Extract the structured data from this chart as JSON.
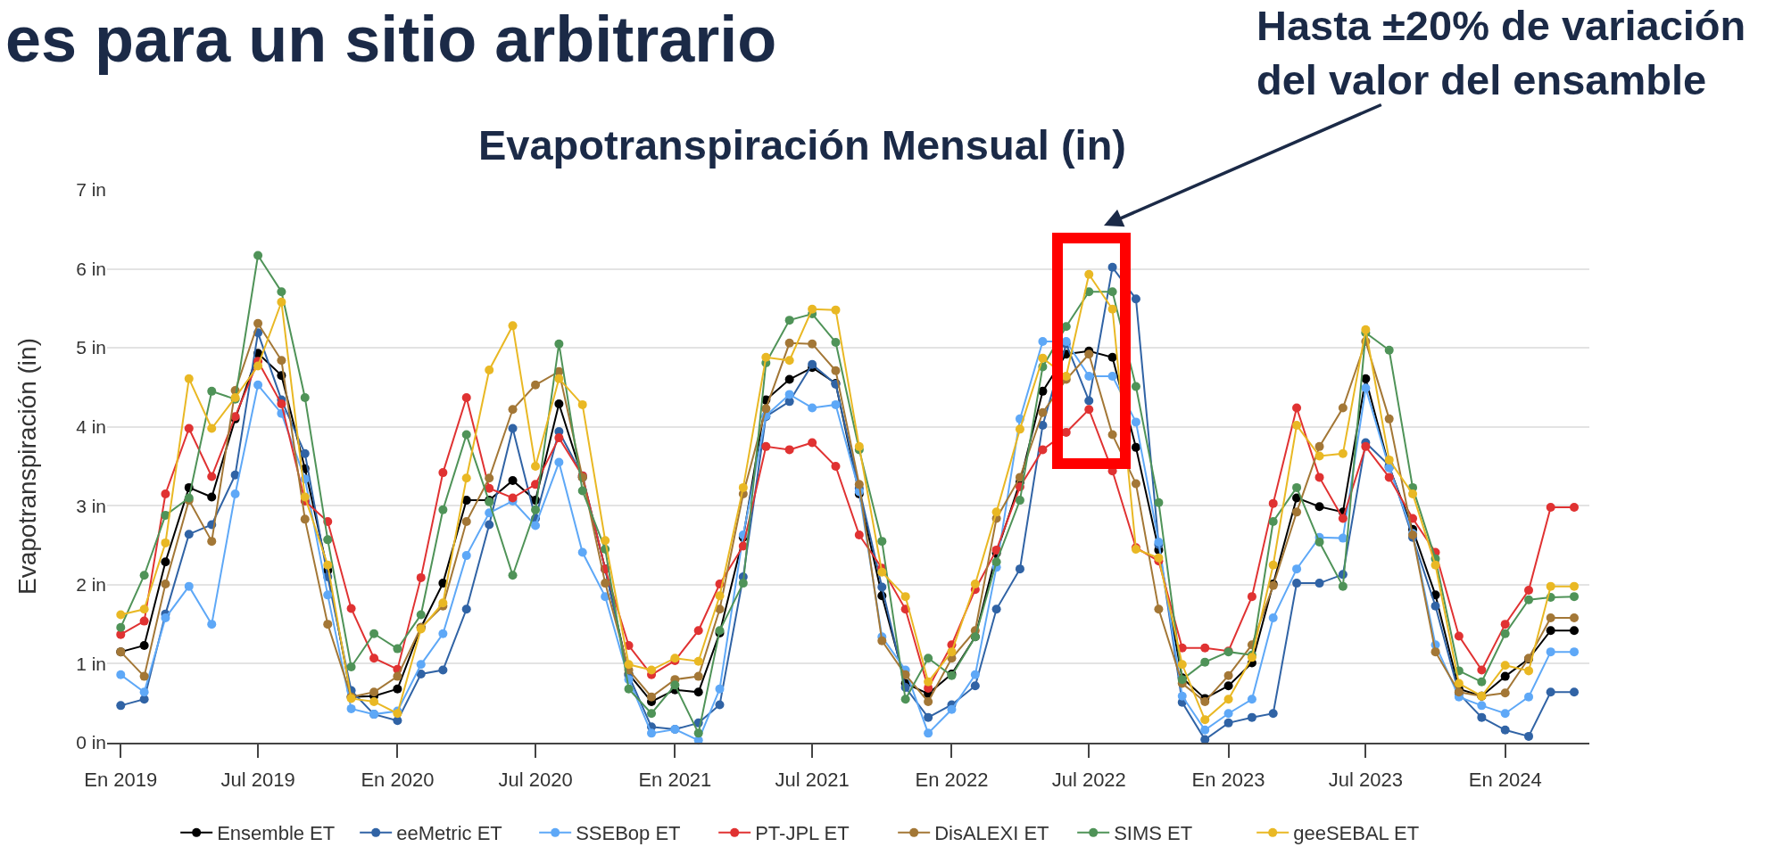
{
  "chart_data": {
    "type": "line",
    "title": "Evapotranspiración Mensual (in)",
    "ylabel": "Evapotranspiración (in)",
    "annotations": [
      "es para un sitio arbitrario",
      "Hasta ±20% de variación\ndel valor del ensamble"
    ],
    "x": [
      "2019-01",
      "2019-02",
      "2019-03",
      "2019-04",
      "2019-05",
      "2019-06",
      "2019-07",
      "2019-08",
      "2019-09",
      "2019-10",
      "2019-11",
      "2019-12",
      "2020-01",
      "2020-02",
      "2020-03",
      "2020-04",
      "2020-05",
      "2020-06",
      "2020-07",
      "2020-08",
      "2020-09",
      "2020-10",
      "2020-11",
      "2020-12",
      "2021-01",
      "2021-02",
      "2021-03",
      "2021-04",
      "2021-05",
      "2021-06",
      "2021-07",
      "2021-08",
      "2021-09",
      "2021-10",
      "2021-11",
      "2021-12",
      "2022-01",
      "2022-02",
      "2022-03",
      "2022-04",
      "2022-05",
      "2022-06",
      "2022-07",
      "2022-08",
      "2022-09",
      "2022-10",
      "2022-11",
      "2022-12",
      "2023-01",
      "2023-02",
      "2023-03",
      "2023-04",
      "2023-05",
      "2023-06",
      "2023-07",
      "2023-08",
      "2023-09",
      "2023-10",
      "2023-11",
      "2023-12",
      "2024-01",
      "2024-02",
      "2024-03",
      "2024-04"
    ],
    "series": [
      {
        "name": "Ensemble ET",
        "color": "#000000",
        "values": [
          1.15,
          1.23,
          2.29,
          3.23,
          3.11,
          4.1,
          4.93,
          4.65,
          3.47,
          2.18,
          0.58,
          0.59,
          0.68,
          1.46,
          2.02,
          3.07,
          3.07,
          3.32,
          3.07,
          4.29,
          3.36,
          2.2,
          0.87,
          0.52,
          0.67,
          0.64,
          1.39,
          2.6,
          4.34,
          4.6,
          4.75,
          4.55,
          3.15,
          1.86,
          0.75,
          0.62,
          0.87,
          1.34,
          2.4,
          3.3,
          4.45,
          4.92,
          4.96,
          4.88,
          3.74,
          2.44,
          0.82,
          0.56,
          0.72,
          1.01,
          2.01,
          3.1,
          2.99,
          2.92,
          4.61,
          3.49,
          2.7,
          1.87,
          0.68,
          0.59,
          0.84,
          1.06,
          1.42,
          1.42
        ]
      },
      {
        "name": "eeMetric ET",
        "color": "#3063a5",
        "values": [
          0.47,
          0.55,
          1.63,
          2.64,
          2.76,
          3.39,
          5.19,
          4.34,
          3.66,
          2.1,
          0.66,
          0.36,
          0.28,
          0.87,
          0.92,
          1.69,
          2.76,
          3.98,
          2.84,
          3.94,
          3.38,
          2.2,
          0.85,
          0.2,
          0.17,
          0.25,
          0.48,
          2.1,
          4.13,
          4.32,
          4.79,
          4.54,
          3.22,
          1.97,
          0.7,
          0.32,
          0.48,
          0.72,
          1.69,
          2.2,
          4.02,
          5.05,
          4.33,
          6.02,
          5.62,
          2.51,
          0.51,
          0.04,
          0.25,
          0.32,
          0.37,
          2.02,
          2.02,
          2.13,
          3.8,
          3.51,
          2.6,
          1.73,
          0.62,
          0.32,
          0.16,
          0.08,
          0.64,
          0.64
        ]
      },
      {
        "name": "SSEBop ET",
        "color": "#5ea8f7",
        "values": [
          0.86,
          0.64,
          1.58,
          1.98,
          1.5,
          3.15,
          4.53,
          4.17,
          3.34,
          1.87,
          0.43,
          0.36,
          0.4,
          0.99,
          1.38,
          2.37,
          2.91,
          3.06,
          2.75,
          3.55,
          2.41,
          1.85,
          0.8,
          0.12,
          0.17,
          0.03,
          0.68,
          2.63,
          4.14,
          4.41,
          4.24,
          4.28,
          3.18,
          1.34,
          0.92,
          0.12,
          0.42,
          0.86,
          2.22,
          4.1,
          5.08,
          5.08,
          4.64,
          4.64,
          4.06,
          2.54,
          0.59,
          0.16,
          0.37,
          0.55,
          1.58,
          2.2,
          2.6,
          2.59,
          4.49,
          3.48,
          2.65,
          1.24,
          0.58,
          0.47,
          0.37,
          0.58,
          1.15,
          1.15
        ]
      },
      {
        "name": "PT-JPL ET",
        "color": "#e03232",
        "values": [
          1.37,
          1.54,
          3.15,
          3.98,
          3.37,
          4.13,
          4.83,
          4.29,
          3.06,
          2.8,
          1.7,
          1.07,
          0.93,
          2.09,
          3.42,
          4.37,
          3.22,
          3.1,
          3.27,
          3.86,
          3.38,
          2.2,
          1.23,
          0.86,
          1.04,
          1.42,
          2.01,
          2.49,
          3.75,
          3.71,
          3.8,
          3.5,
          2.63,
          2.21,
          1.69,
          0.69,
          1.24,
          1.94,
          2.44,
          3.24,
          3.71,
          3.93,
          4.22,
          3.44,
          2.47,
          2.3,
          1.2,
          1.2,
          1.16,
          1.85,
          3.03,
          4.24,
          3.36,
          2.84,
          3.75,
          3.36,
          2.84,
          2.41,
          1.35,
          0.92,
          1.5,
          1.93,
          2.98,
          2.98
        ]
      },
      {
        "name": "DisALEXI ET",
        "color": "#a37736",
        "values": [
          1.15,
          0.84,
          2.01,
          3.07,
          2.55,
          4.46,
          5.31,
          4.84,
          2.83,
          1.5,
          0.58,
          0.64,
          0.84,
          1.46,
          1.73,
          2.8,
          3.35,
          4.22,
          4.53,
          4.7,
          3.36,
          2.02,
          0.92,
          0.58,
          0.8,
          0.84,
          1.69,
          3.15,
          4.23,
          5.06,
          5.05,
          4.71,
          3.27,
          1.29,
          0.86,
          0.52,
          1.07,
          1.42,
          2.84,
          3.36,
          4.18,
          4.6,
          4.92,
          3.9,
          3.28,
          1.69,
          0.75,
          0.52,
          0.85,
          1.24,
          1.99,
          2.92,
          3.75,
          4.24,
          5.08,
          4.1,
          2.63,
          1.15,
          0.64,
          0.59,
          0.63,
          1.07,
          1.58,
          1.58
        ]
      },
      {
        "name": "SIMS ET",
        "color": "#4f9358",
        "values": [
          1.46,
          2.12,
          2.88,
          3.1,
          4.45,
          4.35,
          6.17,
          5.71,
          4.37,
          2.57,
          0.96,
          1.38,
          1.19,
          1.62,
          2.95,
          3.9,
          3.05,
          2.12,
          2.95,
          5.05,
          3.19,
          2.45,
          0.68,
          0.37,
          0.73,
          0.12,
          1.42,
          2.02,
          4.81,
          5.35,
          5.43,
          5.07,
          3.71,
          2.55,
          0.55,
          1.07,
          0.85,
          1.34,
          2.29,
          3.07,
          4.76,
          5.27,
          5.71,
          5.71,
          4.51,
          3.04,
          0.8,
          1.02,
          1.15,
          1.11,
          2.8,
          3.23,
          2.54,
          1.98,
          5.19,
          4.97,
          3.23,
          2.33,
          0.91,
          0.77,
          1.38,
          1.81,
          1.84,
          1.85
        ]
      },
      {
        "name": "geeSEBAL ET",
        "color": "#e9b824",
        "values": [
          1.62,
          1.69,
          2.53,
          4.61,
          3.98,
          4.37,
          4.77,
          5.58,
          3.11,
          2.25,
          0.56,
          0.52,
          0.37,
          1.44,
          1.77,
          3.35,
          4.72,
          5.28,
          3.5,
          4.61,
          4.28,
          2.56,
          0.99,
          0.92,
          1.07,
          1.03,
          1.86,
          3.23,
          4.88,
          4.84,
          5.49,
          5.48,
          3.75,
          2.16,
          1.85,
          0.77,
          1.15,
          2.01,
          2.92,
          3.97,
          4.87,
          4.64,
          5.93,
          5.49,
          2.45,
          2.34,
          0.99,
          0.29,
          0.55,
          1.08,
          2.25,
          4.02,
          3.63,
          3.66,
          5.23,
          3.58,
          3.15,
          2.25,
          0.75,
          0.59,
          0.98,
          0.91,
          1.98,
          1.98
        ]
      }
    ],
    "xlim": [
      "2018-12-14",
      "2024-04-21"
    ],
    "xticks": [
      {
        "value": "2019-01",
        "label": "En 2019"
      },
      {
        "value": "2019-07",
        "label": "Jul 2019"
      },
      {
        "value": "2020-01",
        "label": "En 2020"
      },
      {
        "value": "2020-07",
        "label": "Jul 2020"
      },
      {
        "value": "2021-01",
        "label": "En 2021"
      },
      {
        "value": "2021-07",
        "label": "Jul 2021"
      },
      {
        "value": "2022-01",
        "label": "En 2022"
      },
      {
        "value": "2022-07",
        "label": "Jul 2022"
      },
      {
        "value": "2023-01",
        "label": "En 2023"
      },
      {
        "value": "2023-07",
        "label": "Jul 2023"
      },
      {
        "value": "2024-01",
        "label": "En 2024"
      }
    ],
    "ylim": [
      0,
      7
    ],
    "yticks": [
      {
        "value": 0,
        "label": "0 in"
      },
      {
        "value": 1,
        "label": "1 in"
      },
      {
        "value": 2,
        "label": "2 in"
      },
      {
        "value": 3,
        "label": "3 in"
      },
      {
        "value": 4,
        "label": "4 in"
      },
      {
        "value": 5,
        "label": "5 in"
      },
      {
        "value": 6,
        "label": "6 in"
      },
      {
        "value": 7,
        "label": "7 in"
      }
    ],
    "grid": "y",
    "legend": "bottom",
    "marker": "circle",
    "line_style": "solid"
  }
}
